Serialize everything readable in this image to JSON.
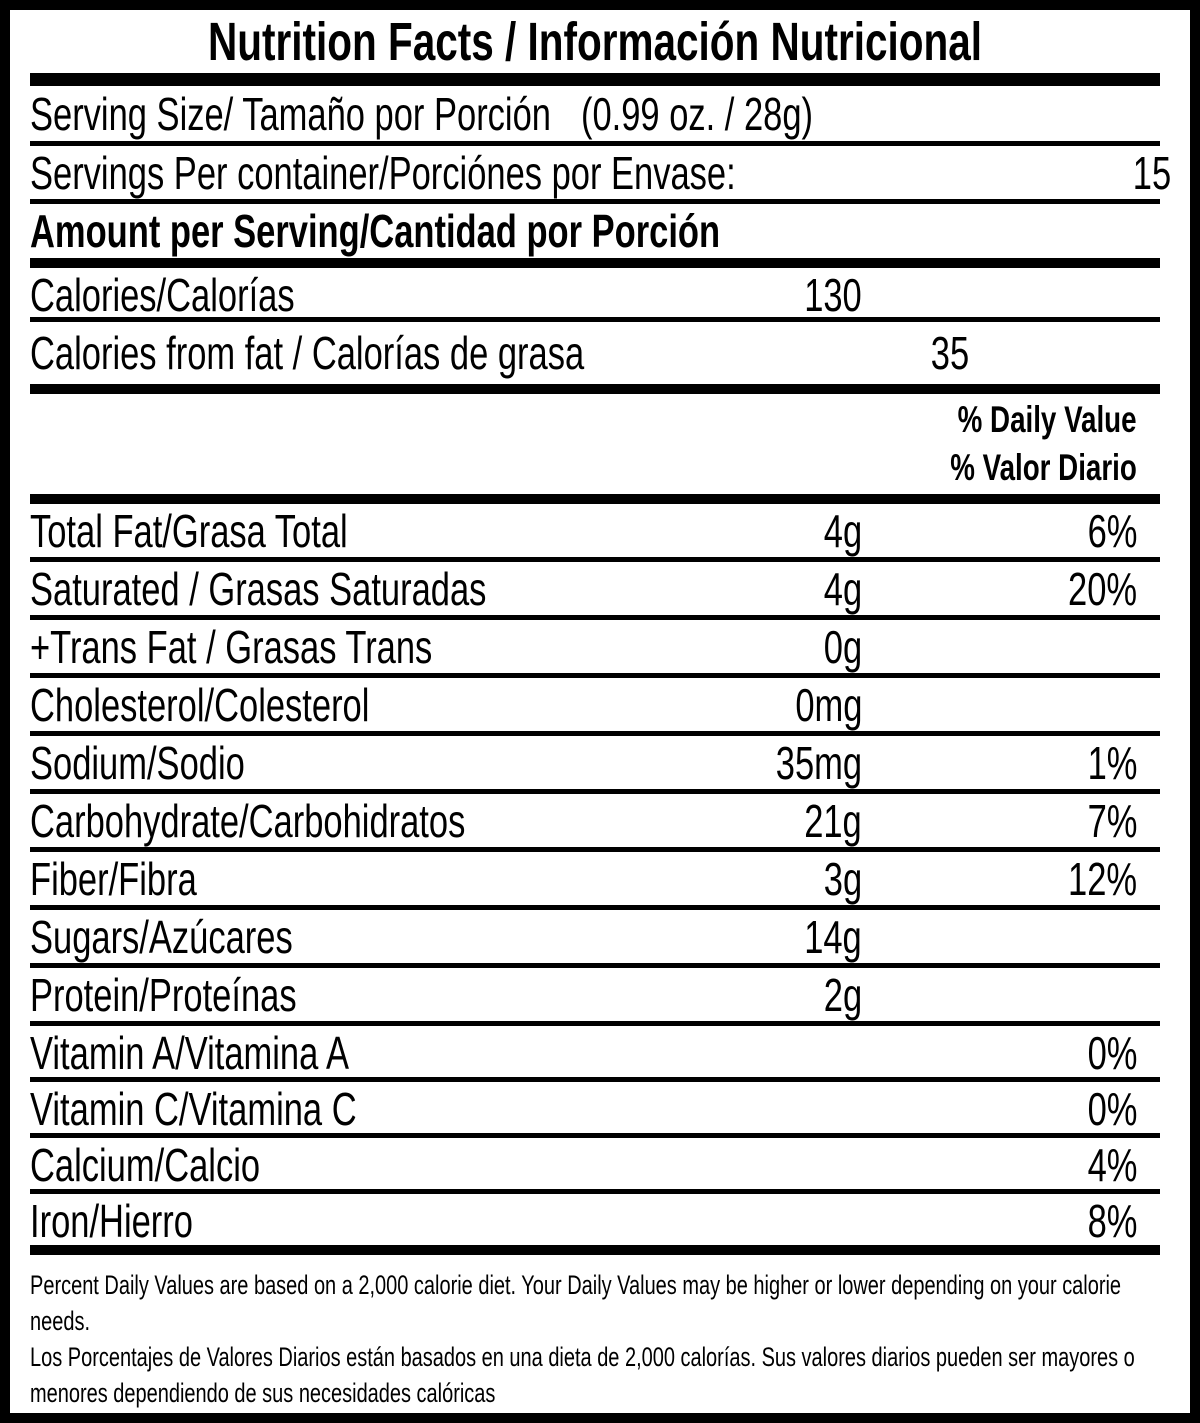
{
  "title": "Nutrition Facts / Información Nutricional",
  "serving_size": {
    "label": "Serving Size/ Tamaño por Porción",
    "value": "(0.99 oz. / 28g)"
  },
  "servings_per_container": {
    "label": "Servings Per container/Porciónes por Envase:",
    "value": "15"
  },
  "amount_per_serving_heading": "Amount per Serving/Cantidad por Porción",
  "calories_rows": [
    {
      "label": "Calories/Calorías",
      "amount": "130"
    },
    {
      "label": "Calories from fat / Calorías de grasa",
      "amount": "35"
    }
  ],
  "daily_value_heading": {
    "en": "% Daily Value",
    "es": "% Valor Diario"
  },
  "nutrient_rows": [
    {
      "label": "Total Fat/Grasa Total",
      "amount": "4g",
      "daily_value": "6%"
    },
    {
      "label": "Saturated / Grasas Saturadas",
      "amount": "4g",
      "daily_value": "20%"
    },
    {
      "label": "+Trans Fat / Grasas Trans",
      "amount": "0g",
      "daily_value": ""
    },
    {
      "label": "Cholesterol/Colesterol",
      "amount": "0mg",
      "daily_value": ""
    },
    {
      "label": "Sodium/Sodio",
      "amount": "35mg",
      "daily_value": "1%"
    },
    {
      "label": "Carbohydrate/Carbohidratos",
      "amount": "21g",
      "daily_value": "7%"
    },
    {
      "label": "Fiber/Fibra",
      "amount": "3g",
      "daily_value": "12%"
    },
    {
      "label": "Sugars/Azúcares",
      "amount": "14g",
      "daily_value": ""
    },
    {
      "label": "Protein/Proteínas",
      "amount": "2g",
      "daily_value": ""
    }
  ],
  "vitamin_rows": [
    {
      "label": "Vitamin A/Vitamina A",
      "daily_value": "0%"
    },
    {
      "label": "Vitamin C/Vitamina C",
      "daily_value": "0%"
    },
    {
      "label": "Calcium/Calcio",
      "daily_value": "4%"
    },
    {
      "label": "Iron/Hierro",
      "daily_value": "8%"
    }
  ],
  "footnotes": {
    "en": "Percent Daily Values are based on a 2,000 calorie diet. Your Daily Values may be higher or lower depending on your calorie needs.",
    "es": "Los Porcentajes de Valores Diarios están basados en una dieta de 2,000 calorías. Sus valores diarios pueden ser mayores o menores dependiendo de sus necesidades calóricas"
  },
  "colors": {
    "ink": "#000000",
    "paper": "#ffffff"
  }
}
